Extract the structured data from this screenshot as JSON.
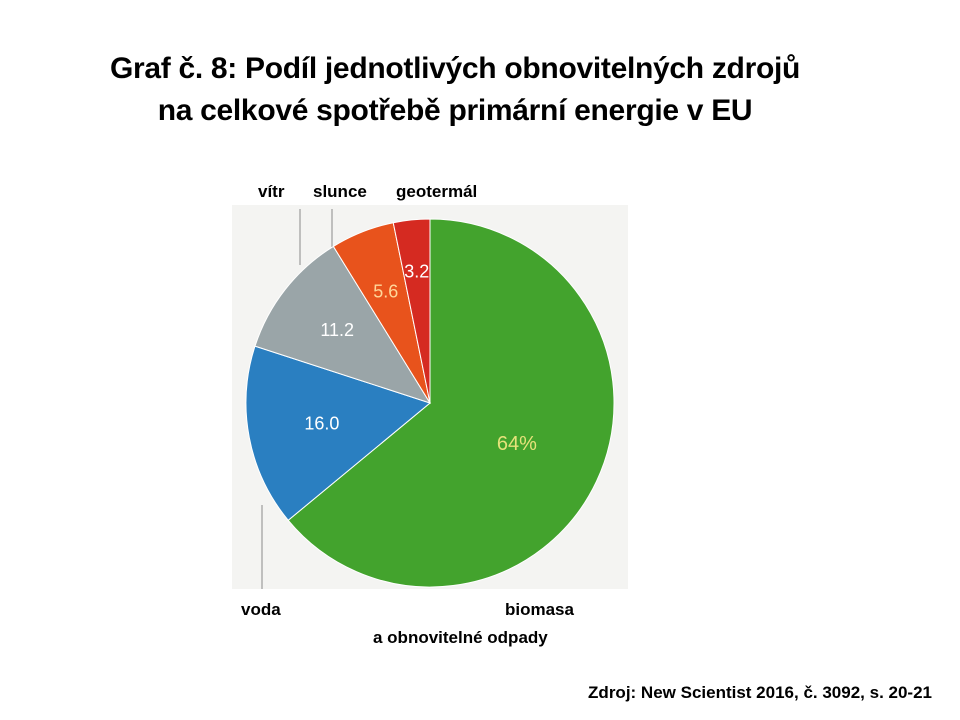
{
  "title": {
    "line1": "Graf č. 8: Podíl jednotlivých obnovitelných zdrojů",
    "line2": "na celkové spotřebě primární energie v EU"
  },
  "source": "Zdroj: New Scientist 2016, č. 3092, s. 20-21",
  "chart_data": {
    "type": "pie",
    "categories": [
      "biomasa a obnovitelné odpady",
      "voda",
      "vítr",
      "slunce",
      "geotermál"
    ],
    "values": [
      64,
      16.0,
      11.2,
      5.6,
      3.2
    ],
    "data_labels": [
      "64%",
      "16.0",
      "11.2",
      "5.6",
      "3.2"
    ],
    "colors": [
      "#43a32d",
      "#2a7fc1",
      "#9aa5a8",
      "#e8531c",
      "#d52a21"
    ],
    "label_colors": [
      "#e6e27a",
      "#ffffff",
      "#ffffff",
      "#ffd79a",
      "#ffffff"
    ],
    "category_labels": {
      "vitr": "vítr",
      "slunce": "slunce",
      "geotermal": "geotermál",
      "voda": "voda",
      "biomasa_line1": "biomasa",
      "biomasa_line2": "a obnovitelné odpady"
    }
  }
}
